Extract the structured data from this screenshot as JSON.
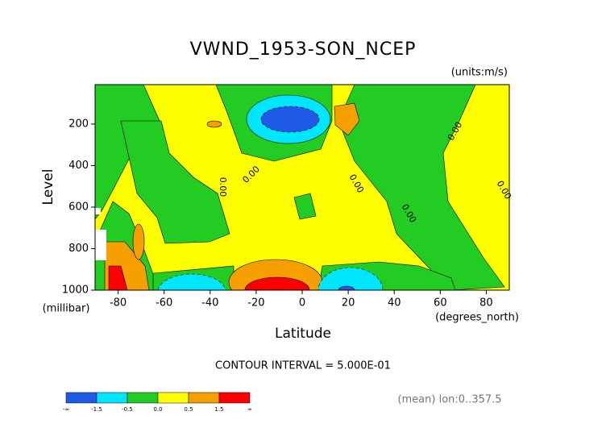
{
  "chart_data": {
    "type": "contour",
    "title": "VWND_1953-SON_NCEP",
    "units": "(units:m/s)",
    "y_label": "Level",
    "y_unit": "(millibar)",
    "x_label": "Latitude",
    "x_unit": "(degrees_north)",
    "contour_interval": "CONTOUR INTERVAL = 5.000E-01",
    "footnote": "(mean) lon:0..357.5",
    "xlim": [
      -90,
      90
    ],
    "xticks": [
      -80,
      -60,
      -40,
      -20,
      0,
      20,
      40,
      60,
      80
    ],
    "ylim": [
      1000,
      10
    ],
    "yticks": [
      200,
      400,
      600,
      800,
      1000
    ],
    "contour_labels": [
      "0.00",
      "0.00",
      "0.00",
      "0.00",
      "0.00",
      "0.00"
    ],
    "colorbar": {
      "ends": [
        "-∞",
        "∞"
      ],
      "levels": [
        -1.5,
        -0.5,
        {
          "value": 0,
          "label": "0.0"
        },
        0.5,
        1.5
      ],
      "colors": [
        "#1e5ae6",
        "#00e6ff",
        "#22cc22",
        "#ffff00",
        "#f5a000",
        "#ff0000"
      ]
    }
  }
}
